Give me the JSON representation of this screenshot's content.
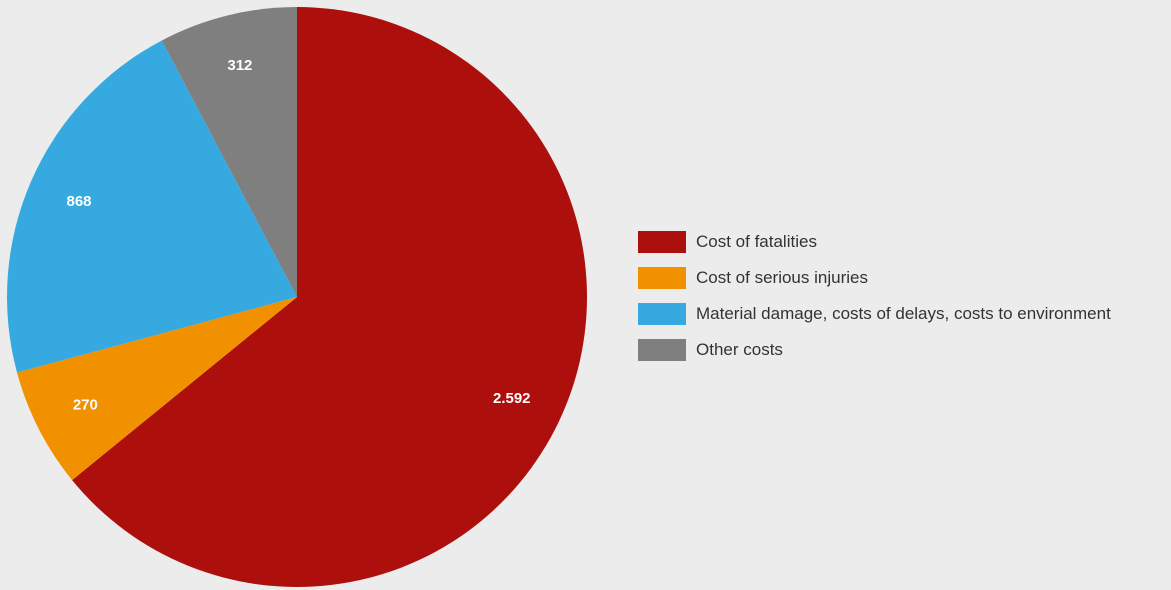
{
  "chart_data": {
    "type": "pie",
    "title": "",
    "slices": [
      {
        "name": "Cost of fatalities",
        "value": 2592,
        "label": "2.592",
        "color": "#ad0f0c"
      },
      {
        "name": "Cost of serious injuries",
        "value": 270,
        "label": "270",
        "color": "#f29100"
      },
      {
        "name": "Material damage, costs of delays, costs to environment",
        "value": 868,
        "label": "868",
        "color": "#36a9e1"
      },
      {
        "name": "Other costs",
        "value": 312,
        "label": "312",
        "color": "#7f7f7f"
      }
    ],
    "start_angle_deg": 0,
    "direction": "clockwise",
    "legend_position": "right"
  },
  "legend": {
    "items": [
      {
        "label": "Cost of fatalities"
      },
      {
        "label": "Cost of serious injuries"
      },
      {
        "label": "Material damage, costs of delays, costs to environment"
      },
      {
        "label": "Other costs"
      }
    ]
  }
}
